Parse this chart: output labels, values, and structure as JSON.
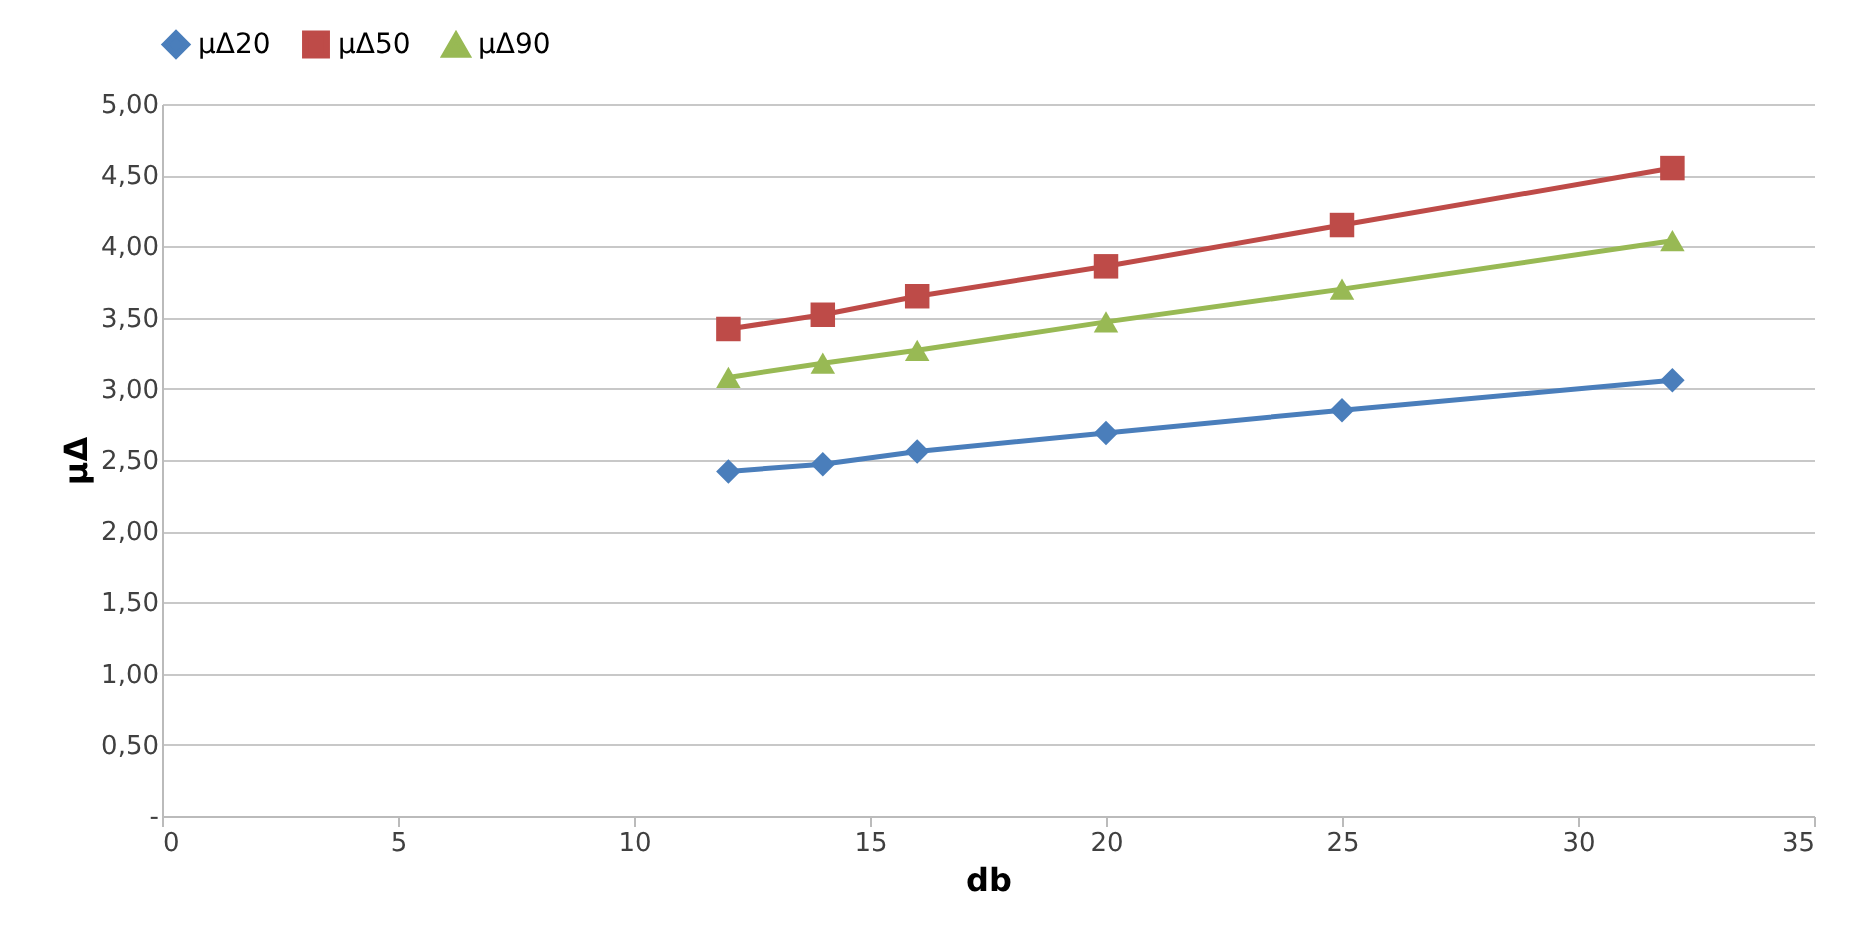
{
  "chart_data": {
    "type": "line",
    "xlabel": "db",
    "ylabel": "μΔ",
    "x": [
      12,
      14,
      16,
      20,
      25,
      32
    ],
    "series": [
      {
        "name": "μΔ20",
        "color": "#4a7ebb",
        "marker": "diamond",
        "values": [
          2.42,
          2.47,
          2.56,
          2.69,
          2.85,
          3.06
        ]
      },
      {
        "name": "μΔ50",
        "color": "#be4b48",
        "marker": "square",
        "values": [
          3.42,
          3.52,
          3.65,
          3.86,
          4.15,
          4.55
        ]
      },
      {
        "name": "μΔ90",
        "color": "#98b954",
        "marker": "triangle",
        "values": [
          3.08,
          3.18,
          3.27,
          3.47,
          3.7,
          4.04
        ]
      }
    ],
    "xlim": [
      0,
      35
    ],
    "xticks": [
      0,
      5,
      10,
      15,
      20,
      25,
      30,
      35
    ],
    "ylim": [
      0,
      5
    ],
    "yticks": [
      {
        "value": 0,
        "label": "-"
      },
      {
        "value": 0.5,
        "label": "0,50"
      },
      {
        "value": 1,
        "label": "1,00"
      },
      {
        "value": 1.5,
        "label": "1,50"
      },
      {
        "value": 2,
        "label": "2,00"
      },
      {
        "value": 2.5,
        "label": "2,50"
      },
      {
        "value": 3,
        "label": "3,00"
      },
      {
        "value": 3.5,
        "label": "3,50"
      },
      {
        "value": 4,
        "label": "4,00"
      },
      {
        "value": 4.5,
        "label": "4,50"
      },
      {
        "value": 5,
        "label": "5,00"
      }
    ],
    "grid": "y",
    "legend": "top",
    "line_style": "solid"
  }
}
